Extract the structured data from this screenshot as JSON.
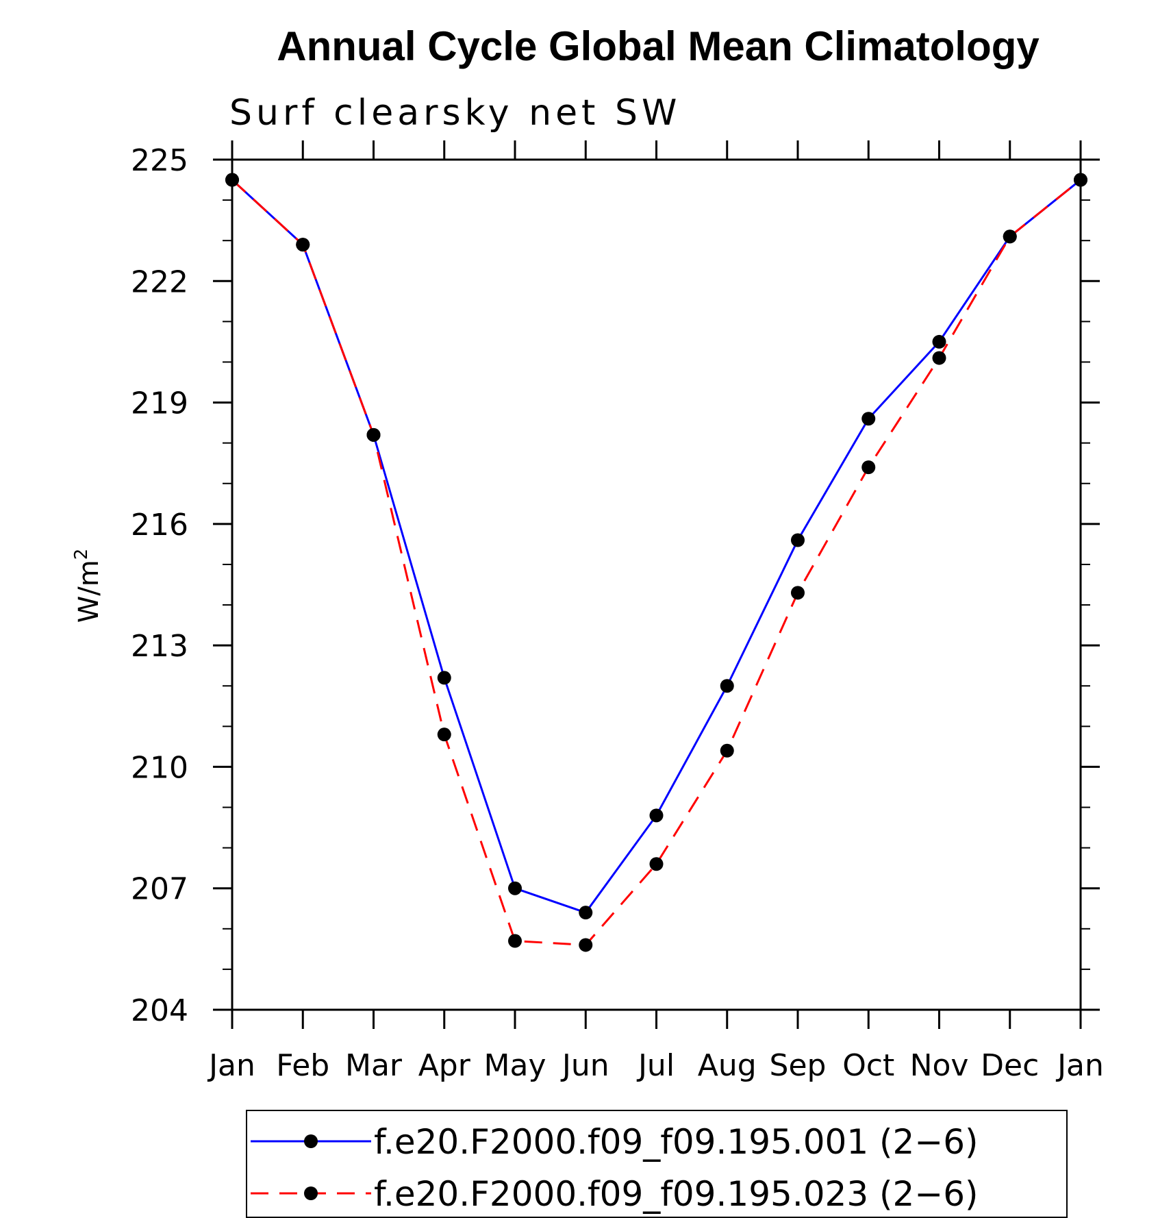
{
  "chart_data": {
    "type": "line",
    "title": "Annual Cycle Global Mean Climatology",
    "subtitle": "Surf clearsky net SW",
    "xlabel": "",
    "ylabel_base": "W/m",
    "ylabel_sup": "2",
    "categories": [
      "Jan",
      "Feb",
      "Mar",
      "Apr",
      "May",
      "Jun",
      "Jul",
      "Aug",
      "Sep",
      "Oct",
      "Nov",
      "Dec",
      "Jan"
    ],
    "ylim": [
      204,
      225
    ],
    "yticks": [
      204,
      207,
      210,
      213,
      216,
      219,
      222,
      225
    ],
    "grid": false,
    "legend_position": "bottom",
    "series": [
      {
        "name": "f.e20.F2000.f09_f09.195.001 (2−6)",
        "color": "#0000ff",
        "dash": "solid",
        "marker": "filled-circle",
        "values": [
          224.5,
          222.9,
          218.2,
          212.2,
          207.0,
          206.4,
          208.8,
          212.0,
          215.6,
          218.6,
          220.5,
          223.1,
          224.5
        ]
      },
      {
        "name": "f.e20.F2000.f09_f09.195.023 (2−6)",
        "color": "#ff0000",
        "dash": "dashed",
        "marker": "filled-circle",
        "values": [
          224.5,
          222.9,
          218.2,
          210.8,
          205.7,
          205.6,
          207.6,
          210.4,
          214.3,
          217.4,
          220.1,
          223.1,
          224.5
        ]
      }
    ]
  }
}
